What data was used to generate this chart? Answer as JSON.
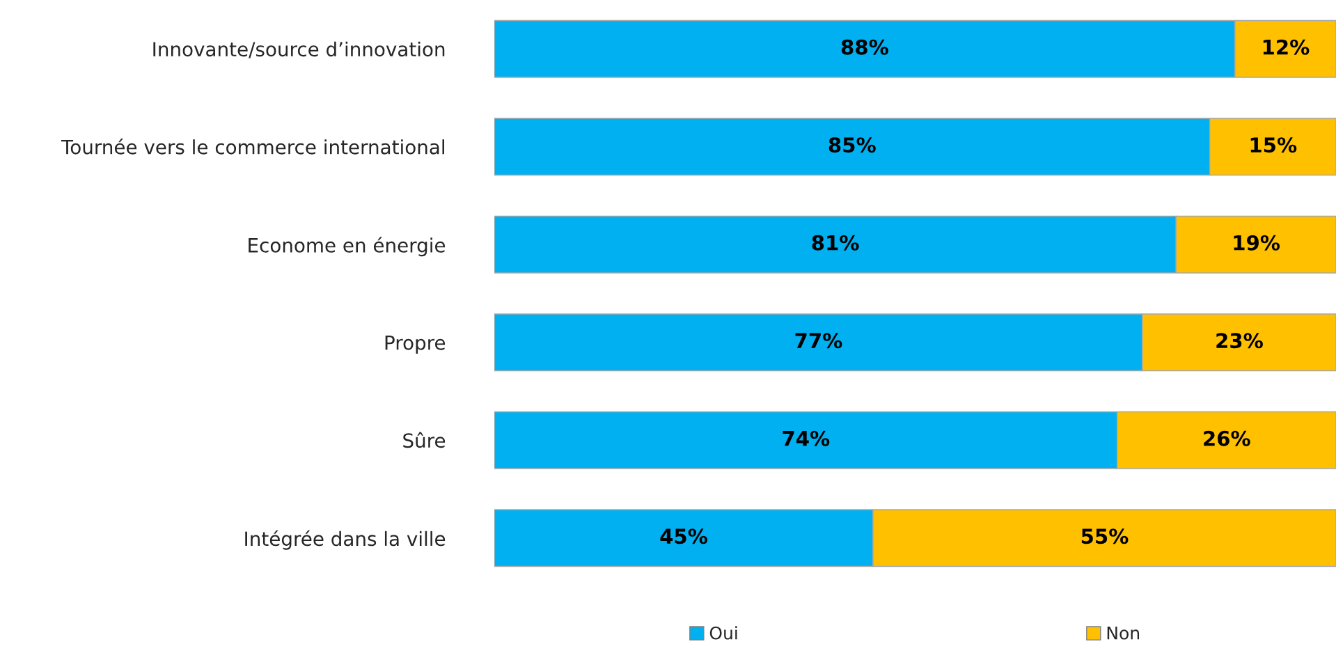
{
  "chart_data": {
    "type": "bar",
    "orientation": "horizontal",
    "stacked": true,
    "categories": [
      "Innovante/source d’innovation",
      "Tournée vers le commerce international",
      "Econome en énergie",
      "Propre",
      "Sûre",
      "Intégrée dans la ville"
    ],
    "series": [
      {
        "name": "Oui",
        "color": "#00b0f0",
        "values": [
          88,
          85,
          81,
          77,
          74,
          45
        ],
        "value_labels": [
          "88%",
          "85%",
          "81%",
          "77%",
          "74%",
          "45%"
        ]
      },
      {
        "name": "Non",
        "color": "#ffc000",
        "values": [
          12,
          15,
          19,
          23,
          26,
          55
        ],
        "value_labels": [
          "12%",
          "15%",
          "19%",
          "23%",
          "26%",
          "55%"
        ]
      }
    ],
    "legend": "bottom",
    "tick_labels": "y"
  }
}
